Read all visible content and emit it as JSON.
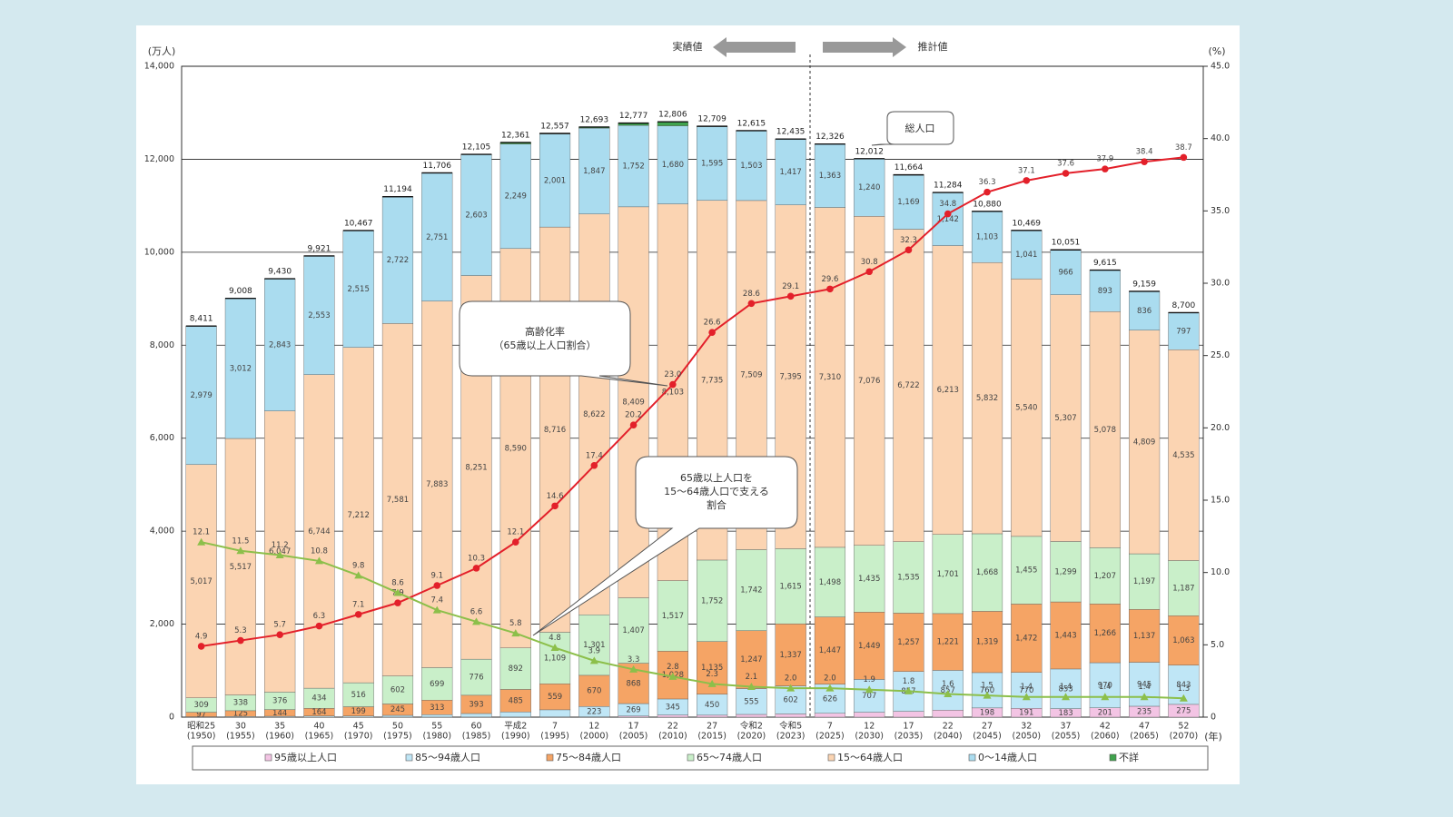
{
  "chart_data": {
    "type": "stacked_bar_line",
    "categories": [
      "昭和25",
      "30",
      "35",
      "40",
      "45",
      "50",
      "55",
      "60",
      "平成2",
      "7",
      "12",
      "17",
      "22",
      "27",
      "令和2",
      "令和5",
      "7",
      "12",
      "17",
      "22",
      "27",
      "32",
      "37",
      "42",
      "47",
      "52"
    ],
    "category_years": [
      "(1950)",
      "(1955)",
      "(1960)",
      "(1965)",
      "(1970)",
      "(1975)",
      "(1980)",
      "(1985)",
      "(1990)",
      "(1995)",
      "(2000)",
      "(2005)",
      "(2010)",
      "(2015)",
      "(2020)",
      "(2023)",
      "(2025)",
      "(2030)",
      "(2035)",
      "(2040)",
      "(2045)",
      "(2050)",
      "(2055)",
      "(2060)",
      "(2065)",
      "(2070)"
    ],
    "series": [
      {
        "name": "95歳以上人口",
        "color": "#f3c4e4",
        "values": [
          0,
          0,
          0,
          0,
          0,
          1,
          1,
          2,
          3,
          6,
          7,
          23,
          46,
          42,
          59,
          69,
          82,
          105,
          124,
          150,
          198,
          191,
          183,
          201,
          235,
          275
        ]
      },
      {
        "name": "85～94歳人口",
        "color": "#bfe6f6",
        "values": [
          9,
          14,
          19,
          25,
          25,
          38,
          52,
          76,
          109,
          152,
          223,
          269,
          345,
          450,
          555,
          602,
          626,
          707,
          857,
          857,
          760,
          770,
          853,
          970,
          945,
          843
        ]
      },
      {
        "name": "75～84歳人口",
        "color": "#f5a465",
        "values": [
          97,
          125,
          144,
          164,
          199,
          245,
          313,
          393,
          485,
          559,
          670,
          868,
          1028,
          1135,
          1247,
          1337,
          1447,
          1449,
          1257,
          1221,
          1319,
          1472,
          1443,
          1266,
          1137,
          1063
        ],
        "value_labels": [
          "97",
          "125",
          "144",
          "164",
          "199",
          "245",
          "313",
          "393",
          "485",
          "559",
          "670",
          "868",
          "1,028",
          "1,135",
          "1,247",
          "1,337",
          "1,447",
          "1,449",
          "1,257",
          "1,221",
          "1,319",
          "1,472",
          "1,443",
          "1,266",
          "1,137",
          "1,063"
        ]
      },
      {
        "name": "65～74歳人口",
        "color": "#c9efc9",
        "values": [
          309,
          338,
          376,
          434,
          516,
          602,
          699,
          776,
          892,
          1109,
          1301,
          1407,
          1517,
          1752,
          1742,
          1615,
          1498,
          1435,
          1535,
          1701,
          1668,
          1455,
          1299,
          1207,
          1197,
          1187
        ],
        "value_labels": [
          "309",
          "338",
          "376",
          "434",
          "516",
          "602",
          "699",
          "776",
          "892",
          "1,109",
          "1,301",
          "1,407",
          "1,517",
          "1,752",
          "1,742",
          "1,615",
          "1,498",
          "1,435",
          "1,535",
          "1,701",
          "1,668",
          "1,455",
          "1,299",
          "1,207",
          "1,197",
          "1,187"
        ]
      },
      {
        "name": "15～64歳人口",
        "color": "#fbd4b2",
        "values": [
          5017,
          5517,
          6047,
          6744,
          7212,
          7581,
          7883,
          8251,
          8590,
          8716,
          8622,
          8409,
          8103,
          7735,
          7509,
          7395,
          7310,
          7076,
          6722,
          6213,
          5832,
          5540,
          5307,
          5078,
          4809,
          4535
        ],
        "value_labels": [
          "5,017",
          "5,517",
          "6,047",
          "6,744",
          "7,212",
          "7,581",
          "7,883",
          "8,251",
          "8,590",
          "8,716",
          "8,622",
          "8,409",
          "8,103",
          "7,735",
          "7,509",
          "7,395",
          "7,310",
          "7,076",
          "6,722",
          "6,213",
          "5,832",
          "5,540",
          "5,307",
          "5,078",
          "4,809",
          "4,535"
        ]
      },
      {
        "name": "0～14歳人口",
        "color": "#aadcef",
        "values": [
          2979,
          3012,
          2843,
          2553,
          2515,
          2722,
          2751,
          2603,
          2249,
          2001,
          1847,
          1752,
          1680,
          1595,
          1503,
          1417,
          1363,
          1240,
          1169,
          1142,
          1103,
          1041,
          966,
          893,
          836,
          797
        ],
        "value_labels": [
          "2,979",
          "3,012",
          "2,843",
          "2,553",
          "2,515",
          "2,722",
          "2,751",
          "2,603",
          "2,249",
          "2,001",
          "1,847",
          "1,752",
          "1,680",
          "1,595",
          "1,503",
          "1,417",
          "1,363",
          "1,240",
          "1,169",
          "1,142",
          "1,103",
          "1,041",
          "966",
          "893",
          "836",
          "797"
        ]
      },
      {
        "name": "不詳",
        "color": "#3fa34d",
        "values": [
          0,
          2,
          1,
          1,
          0,
          5,
          7,
          4,
          33,
          14,
          23,
          49,
          87,
          0,
          0,
          0,
          0,
          0,
          0,
          0,
          0,
          0,
          0,
          0,
          0,
          0
        ]
      }
    ],
    "totals": {
      "values": [
        8411,
        9008,
        9430,
        9921,
        10467,
        11194,
        11706,
        12105,
        12361,
        12557,
        12693,
        12777,
        12806,
        12709,
        12615,
        12435,
        12326,
        12012,
        11664,
        11284,
        10880,
        10469,
        10051,
        9615,
        9159,
        8700
      ],
      "value_labels": [
        "8,411",
        "9,008",
        "9,430",
        "9,921",
        "10,467",
        "11,194",
        "11,706",
        "12,105",
        "12,361",
        "12,557",
        "12,693",
        "12,777",
        "12,806",
        "12,709",
        "12,615",
        "12,435",
        "12,326",
        "12,012",
        "11,664",
        "11,284",
        "10,880",
        "10,469",
        "10,051",
        "9,615",
        "9,159",
        "8,700"
      ]
    },
    "lines": [
      {
        "color": "#e3202a",
        "marker": "circle",
        "axis": "y2",
        "values": [
          4.9,
          5.3,
          5.7,
          6.3,
          7.1,
          7.9,
          9.1,
          10.3,
          12.1,
          14.6,
          17.4,
          20.2,
          23.0,
          26.6,
          28.6,
          29.1,
          29.6,
          30.8,
          32.3,
          34.8,
          36.3,
          37.1,
          37.6,
          37.9,
          38.4,
          38.7
        ],
        "value_labels": [
          "4.9",
          "5.3",
          "5.7",
          "6.3",
          "7.1",
          "7.9",
          "9.1",
          "10.3",
          "12.1",
          "14.6",
          "17.4",
          "20.2",
          "23.0",
          "26.6",
          "28.6",
          "29.1",
          "29.6",
          "30.8",
          "32.3",
          "34.8",
          "36.3",
          "37.1",
          "37.6",
          "37.9",
          "38.4",
          "38.7"
        ]
      },
      {
        "color": "#8cbf4a",
        "marker": "triangle",
        "axis": "y2",
        "values": [
          12.1,
          11.5,
          11.2,
          10.8,
          9.8,
          8.6,
          7.4,
          6.6,
          5.8,
          4.8,
          3.9,
          3.3,
          2.8,
          2.3,
          2.1,
          2.0,
          2.0,
          1.9,
          1.8,
          1.6,
          1.5,
          1.4,
          1.4,
          1.4,
          1.4,
          1.3
        ],
        "value_labels": [
          "12.1",
          "11.5",
          "11.2",
          "10.8",
          "9.8",
          "8.6",
          "7.4",
          "6.6",
          "5.8",
          "4.8",
          "3.9",
          "3.3",
          "2.8",
          "2.3",
          "2.1",
          "2.0",
          "2.0",
          "1.9",
          "1.8",
          "1.6",
          "1.5",
          "1.4",
          "1.4",
          "1.4",
          "1.4",
          "1.3"
        ]
      }
    ],
    "ylim": [
      0,
      14000
    ],
    "yticks": [
      0,
      {
        "value": 2000,
        "label": "2,000"
      },
      {
        "value": 4000,
        "label": "4,000"
      },
      {
        "value": 6000,
        "label": "6,000"
      },
      {
        "value": 8000,
        "label": "8,000"
      },
      {
        "value": 10000,
        "label": "10,000"
      },
      {
        "value": 12000,
        "label": "12,000"
      },
      {
        "value": 14000,
        "label": "14,000"
      }
    ],
    "y2lim": [
      0,
      45
    ],
    "y2ticks": [
      0,
      {
        "value": 5,
        "label": "5.0"
      },
      {
        "value": 10,
        "label": "10.0"
      },
      {
        "value": 15,
        "label": "15.0"
      },
      {
        "value": 20,
        "label": "20.0"
      },
      {
        "value": 25,
        "label": "25.0"
      },
      {
        "value": 30,
        "label": "30.0"
      },
      {
        "value": 35,
        "label": "35.0"
      },
      {
        "value": 40,
        "label": "40.0"
      },
      {
        "value": 45,
        "label": "45.0"
      }
    ],
    "grid": true,
    "annotations": {
      "y_unit": "(万人)",
      "y2_unit": "(%)",
      "x_unit": "(年)",
      "actual": "実績値",
      "projected": "推計値",
      "total_callout": "総人口",
      "aging_callout": [
        "高齢化率",
        "（65歳以上人口割合）"
      ],
      "support_callout": [
        "65歳以上人口を",
        "15～64歳人口で支える",
        "割合"
      ]
    }
  }
}
